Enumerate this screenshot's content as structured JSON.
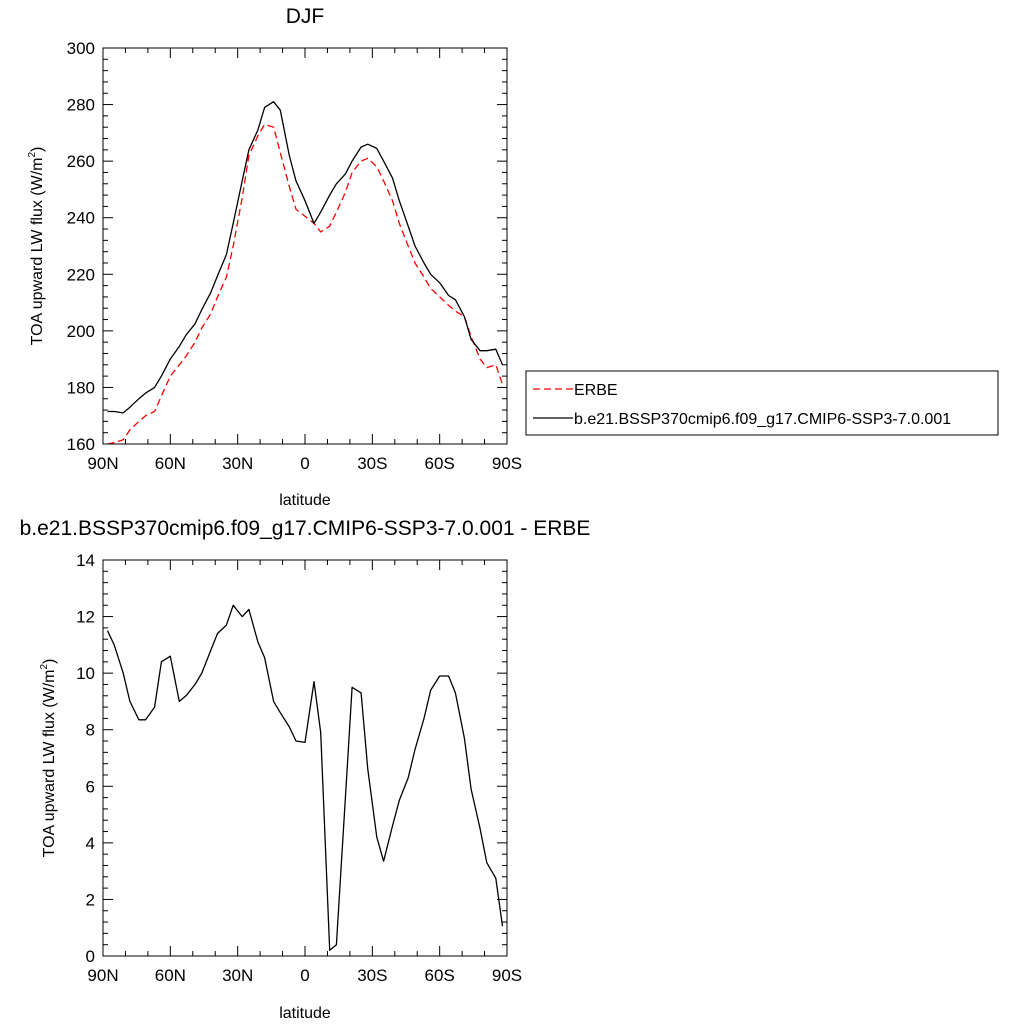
{
  "chart_data": [
    {
      "type": "line",
      "title": "DJF",
      "xlabel": "latitude",
      "ylabel": "TOA upward LW flux (W/m",
      "ylabel_sup": "2",
      "ylabel_close": ")",
      "xlim": [
        90,
        -90
      ],
      "ylim": [
        160,
        300
      ],
      "xticks": [
        90,
        60,
        30,
        0,
        -30,
        -60,
        -90
      ],
      "xtick_labels": [
        "90N",
        "60N",
        "30N",
        "0",
        "30S",
        "60S",
        "90S"
      ],
      "yticks": [
        160,
        180,
        200,
        220,
        240,
        260,
        280,
        300
      ],
      "ytick_labels": [
        "160",
        "180",
        "200",
        "220",
        "240",
        "260",
        "280",
        "300"
      ],
      "legend": "right",
      "series": [
        {
          "name": "ERBE",
          "color": "#ff0000",
          "dash": true,
          "x": [
            88,
            85,
            81,
            78,
            74,
            71,
            67,
            64,
            60,
            56,
            53,
            49,
            46,
            42,
            39,
            35,
            32,
            28,
            25,
            21,
            18,
            14,
            11,
            7,
            4,
            0,
            -4,
            -7,
            -11,
            -14,
            -18,
            -21,
            -25,
            -28,
            -32,
            -35,
            -39,
            -42,
            -46,
            -49,
            -53,
            -56,
            -60,
            -64,
            -67,
            -71,
            -74,
            -78,
            -81,
            -85,
            -88
          ],
          "values": [
            160,
            160.5,
            161.5,
            165,
            168,
            170,
            171.5,
            177,
            184,
            188,
            191,
            196,
            201,
            206,
            212,
            219,
            230,
            247,
            262,
            269,
            273,
            272,
            263,
            251,
            243,
            240.5,
            238,
            235,
            237,
            242,
            249,
            256,
            260,
            261,
            258,
            253,
            246,
            238,
            230,
            224,
            219,
            215,
            212,
            209,
            207,
            205,
            198,
            190,
            187,
            188,
            181
          ]
        },
        {
          "name": "b.e21.BSSP370cmip6.f09_g17.CMIP6-SSP3-7.0.001",
          "color": "#000000",
          "dash": false,
          "x": [
            88,
            85,
            81,
            78,
            74,
            71,
            67,
            64,
            60,
            56,
            53,
            49,
            46,
            42,
            39,
            35,
            32,
            28,
            25,
            21,
            18,
            14,
            11,
            7,
            4,
            0,
            -4,
            -7,
            -11,
            -14,
            -18,
            -21,
            -25,
            -28,
            -32,
            -35,
            -39,
            -42,
            -46,
            -49,
            -53,
            -56,
            -60,
            -64,
            -67,
            -71,
            -74,
            -78,
            -81,
            -85,
            -88
          ],
          "values": [
            171.5,
            171.5,
            171,
            173,
            176,
            178,
            180,
            184,
            190,
            194.5,
            198.5,
            202.5,
            207.5,
            213.5,
            219.5,
            227,
            238,
            253,
            264,
            271,
            279,
            281,
            278,
            262,
            253,
            246,
            238,
            242,
            248,
            252,
            255.5,
            260,
            265,
            266,
            264.5,
            260,
            254,
            246,
            237,
            230,
            224,
            220,
            217,
            212.5,
            211,
            205,
            197,
            193,
            193,
            193.5,
            188
          ]
        }
      ]
    },
    {
      "type": "line",
      "title": "b.e21.BSSP370cmip6.f09_g17.CMIP6-SSP3-7.0.001 - ERBE",
      "xlabel": "latitude",
      "ylabel": "TOA upward LW flux (W/m",
      "ylabel_sup": "2",
      "ylabel_close": ")",
      "xlim": [
        90,
        -90
      ],
      "ylim": [
        0,
        14
      ],
      "xticks": [
        90,
        60,
        30,
        0,
        -30,
        -60,
        -90
      ],
      "xtick_labels": [
        "90N",
        "60N",
        "30N",
        "0",
        "30S",
        "60S",
        "90S"
      ],
      "yticks": [
        0,
        2,
        4,
        6,
        8,
        10,
        12,
        14
      ],
      "ytick_labels": [
        "0",
        "2",
        "4",
        "6",
        "8",
        "10",
        "12",
        "14"
      ],
      "series": [
        {
          "color": "#000000",
          "dash": false,
          "x": [
            88,
            85,
            81,
            78,
            74,
            71,
            67,
            64,
            60,
            56,
            53,
            49,
            46,
            42,
            39,
            35,
            32,
            28,
            25,
            21,
            18,
            14,
            11,
            7,
            4,
            0,
            -4,
            -7,
            -11,
            -14,
            -18,
            -21,
            -25,
            -28,
            -32,
            -35,
            -39,
            -42,
            -46,
            -49,
            -53,
            -56,
            -60,
            -64,
            -67,
            -71,
            -74,
            -78,
            -81,
            -85,
            -88
          ],
          "values": [
            11.5,
            11,
            10,
            9,
            8.35,
            8.35,
            8.8,
            10.4,
            10.6,
            9,
            9.2,
            9.6,
            10,
            10.8,
            11.4,
            11.7,
            12.4,
            12,
            12.25,
            11.1,
            10.55,
            9,
            8.6,
            8.1,
            7.6,
            7.55,
            9.7,
            7.9,
            0.2,
            0.4,
            5.6,
            9.5,
            9.3,
            6.6,
            4.2,
            3.35,
            4.6,
            5.5,
            6.3,
            7.3,
            8.4,
            9.4,
            9.9,
            9.9,
            9.3,
            7.7,
            5.9,
            4.5,
            3.3,
            2.75,
            1.05
          ]
        }
      ]
    }
  ]
}
